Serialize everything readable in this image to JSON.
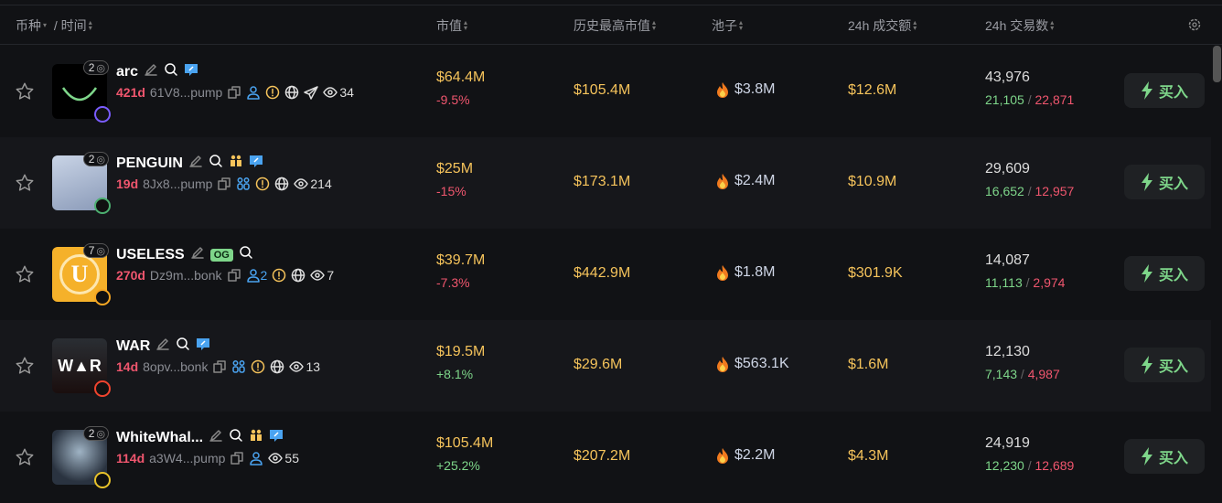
{
  "header": {
    "coin": "币种",
    "time": "/ 时间",
    "mcap": "市值",
    "ath": "历史最高市值",
    "pool": "池子",
    "vol": "24h 成交额",
    "txns": "24h 交易数"
  },
  "colors": {
    "accent_yellow": "#f5c35b",
    "negative": "#f0566e",
    "positive": "#7ed68a",
    "background": "#111215"
  },
  "buy_label": "买入",
  "rows": [
    {
      "name": "arc",
      "count": "2",
      "age": "421d",
      "address": "61V8...pump",
      "name_icons": [
        "edit-icon",
        "search-icon",
        "chat-icon"
      ],
      "meta_icons": [
        "copy-icon",
        "user-icon",
        "warning-icon",
        "globe-icon",
        "telegram-icon"
      ],
      "holders": "",
      "views": "34",
      "mcap": "$64.4M",
      "change": "-9.5%",
      "change_dir": "neg",
      "ath": "$105.4M",
      "pool": "$3.8M",
      "vol": "$12.6M",
      "txns": "43,976",
      "buys": "21,105",
      "sells": "22,871",
      "avatar": "arc",
      "platform_color": "#7a5cff"
    },
    {
      "name": "PENGUIN",
      "count": "2",
      "age": "19d",
      "address": "8Jx8...pump",
      "name_icons": [
        "edit-icon",
        "search-icon",
        "team-icon",
        "chat-icon"
      ],
      "meta_icons": [
        "copy-icon",
        "group-icon",
        "warning-icon",
        "globe-icon"
      ],
      "holders": "",
      "views": "214",
      "mcap": "$25M",
      "change": "-15%",
      "change_dir": "neg",
      "ath": "$173.1M",
      "pool": "$2.4M",
      "vol": "$10.9M",
      "txns": "29,609",
      "buys": "16,652",
      "sells": "12,957",
      "avatar": "penguin",
      "platform_color": "#4caf70"
    },
    {
      "name": "USELESS",
      "count": "7",
      "age": "270d",
      "address": "Dz9m...bonk",
      "og": "OG",
      "name_icons": [
        "edit-icon",
        "og-badge",
        "search-icon"
      ],
      "meta_icons": [
        "copy-icon",
        "user-icon",
        "warning-icon",
        "globe-icon"
      ],
      "holders": "2",
      "views": "7",
      "mcap": "$39.7M",
      "change": "-7.3%",
      "change_dir": "neg",
      "ath": "$442.9M",
      "pool": "$1.8M",
      "vol": "$301.9K",
      "txns": "14,087",
      "buys": "11,113",
      "sells": "2,974",
      "avatar": "useless",
      "platform_color": "#f5a623"
    },
    {
      "name": "WAR",
      "count": "",
      "age": "14d",
      "address": "8opv...bonk",
      "name_icons": [
        "edit-icon",
        "search-icon",
        "chat-icon"
      ],
      "meta_icons": [
        "copy-icon",
        "group-icon",
        "warning-icon",
        "globe-icon"
      ],
      "holders": "",
      "views": "13",
      "mcap": "$19.5M",
      "change": "+8.1%",
      "change_dir": "pos",
      "ath": "$29.6M",
      "pool": "$563.1K",
      "vol": "$1.6M",
      "txns": "12,130",
      "buys": "7,143",
      "sells": "4,987",
      "avatar": "war",
      "platform_color": "#f0442e"
    },
    {
      "name": "WhiteWhal...",
      "count": "2",
      "age": "114d",
      "address": "a3W4...pump",
      "name_icons": [
        "edit-icon",
        "search-icon",
        "team-icon",
        "chat-icon"
      ],
      "meta_icons": [
        "copy-icon",
        "user-icon"
      ],
      "holders": "",
      "views": "55",
      "mcap": "$105.4M",
      "change": "+25.2%",
      "change_dir": "pos",
      "ath": "$207.2M",
      "pool": "$2.2M",
      "vol": "$4.3M",
      "txns": "24,919",
      "buys": "12,230",
      "sells": "12,689",
      "avatar": "whale",
      "platform_color": "#e8c22a"
    }
  ]
}
